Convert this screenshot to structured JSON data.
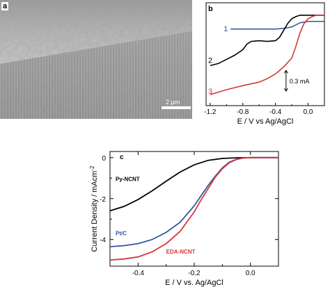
{
  "panels": {
    "a": {
      "label": "a",
      "scale_bar_text": "2 µm"
    },
    "b": {
      "label": "b",
      "xlabel": "E / V vs Ag/AgCl",
      "xticks": [
        "-1.2",
        "-0.8",
        "-0.4",
        "0.0"
      ],
      "curve_labels": [
        "1",
        "2",
        "3"
      ],
      "scale_text": "0.3 mA",
      "colors": {
        "c1": "#3a5fa6",
        "c2": "#000000",
        "c3": "#d33b32"
      }
    },
    "c": {
      "label": "c",
      "xlabel": "E / V vs. Ag/AgCl",
      "ylabel": "Current Density / mAcm",
      "ylabel_sup": "-2",
      "xticks": [
        "-0.4",
        "-0.2",
        "0.0"
      ],
      "yticks": [
        "0",
        "-2",
        "-4"
      ],
      "series_labels": [
        "Py-NCNT",
        "Pt/C",
        "EDA-NCNT"
      ],
      "colors": {
        "py": "#000000",
        "pt": "#2f55a4",
        "eda": "#d8373c"
      }
    }
  },
  "chart_data": [
    {
      "type": "line",
      "panel": "b",
      "xlabel": "E / V vs Ag/AgCl",
      "ylabel": "",
      "xlim": [
        -1.25,
        0.2
      ],
      "series": [
        {
          "name": "1",
          "x": [
            -0.95,
            -0.8,
            -0.6,
            -0.4,
            -0.3,
            -0.2,
            -0.15,
            -0.1,
            -0.05,
            0.0,
            0.1,
            0.2
          ],
          "y": [
            0.0,
            0.0,
            0.0,
            0.0,
            0.01,
            0.03,
            0.06,
            0.09,
            0.1,
            0.11,
            0.11,
            0.11
          ]
        },
        {
          "name": "2",
          "x": [
            -1.2,
            -1.1,
            -1.0,
            -0.9,
            -0.8,
            -0.75,
            -0.7,
            -0.6,
            -0.5,
            -0.4,
            -0.35,
            -0.3,
            -0.25,
            -0.2,
            -0.15,
            -0.1,
            -0.05,
            0.0,
            0.1,
            0.2
          ],
          "y": [
            -0.53,
            -0.5,
            -0.44,
            -0.38,
            -0.3,
            -0.22,
            -0.18,
            -0.17,
            -0.18,
            -0.17,
            -0.12,
            -0.02,
            0.08,
            0.15,
            0.18,
            0.2,
            0.2,
            0.2,
            0.2,
            0.2
          ]
        },
        {
          "name": "3",
          "x": [
            -1.2,
            -1.0,
            -0.8,
            -0.6,
            -0.5,
            -0.4,
            -0.3,
            -0.2,
            -0.15,
            -0.1,
            -0.05,
            0.0,
            0.05,
            0.1,
            0.2
          ],
          "y": [
            -0.95,
            -0.88,
            -0.82,
            -0.77,
            -0.72,
            -0.65,
            -0.55,
            -0.42,
            -0.25,
            -0.06,
            0.08,
            0.15,
            0.18,
            0.2,
            0.2
          ]
        }
      ]
    },
    {
      "type": "line",
      "panel": "c",
      "xlabel": "E / V vs. Ag/AgCl",
      "ylabel": "Current Density / mAcm-2",
      "xlim": [
        -0.5,
        0.1
      ],
      "ylim": [
        -5.3,
        0.3
      ],
      "series": [
        {
          "name": "Py-NCNT",
          "x": [
            -0.5,
            -0.45,
            -0.4,
            -0.35,
            -0.3,
            -0.25,
            -0.2,
            -0.15,
            -0.1,
            -0.05,
            0.0,
            0.05,
            0.1
          ],
          "y": [
            -2.6,
            -2.38,
            -2.05,
            -1.62,
            -1.15,
            -0.7,
            -0.35,
            -0.13,
            -0.04,
            -0.01,
            0.0,
            0.0,
            0.0
          ]
        },
        {
          "name": "Pt/C",
          "x": [
            -0.5,
            -0.45,
            -0.4,
            -0.35,
            -0.3,
            -0.25,
            -0.2,
            -0.175,
            -0.15,
            -0.125,
            -0.1,
            -0.075,
            -0.05,
            -0.025,
            0.0,
            0.05,
            0.1
          ],
          "y": [
            -4.35,
            -4.3,
            -4.2,
            -4.0,
            -3.65,
            -3.15,
            -2.35,
            -1.85,
            -1.35,
            -0.9,
            -0.5,
            -0.22,
            -0.08,
            -0.02,
            0.0,
            0.0,
            0.0
          ]
        },
        {
          "name": "EDA-NCNT",
          "x": [
            -0.5,
            -0.45,
            -0.4,
            -0.35,
            -0.3,
            -0.25,
            -0.2,
            -0.175,
            -0.15,
            -0.125,
            -0.1,
            -0.075,
            -0.05,
            -0.025,
            0.0,
            0.05,
            0.1
          ],
          "y": [
            -5.0,
            -4.95,
            -4.85,
            -4.6,
            -4.2,
            -3.6,
            -2.65,
            -2.05,
            -1.5,
            -0.95,
            -0.55,
            -0.25,
            -0.09,
            -0.02,
            0.0,
            0.0,
            0.0
          ]
        }
      ]
    }
  ]
}
